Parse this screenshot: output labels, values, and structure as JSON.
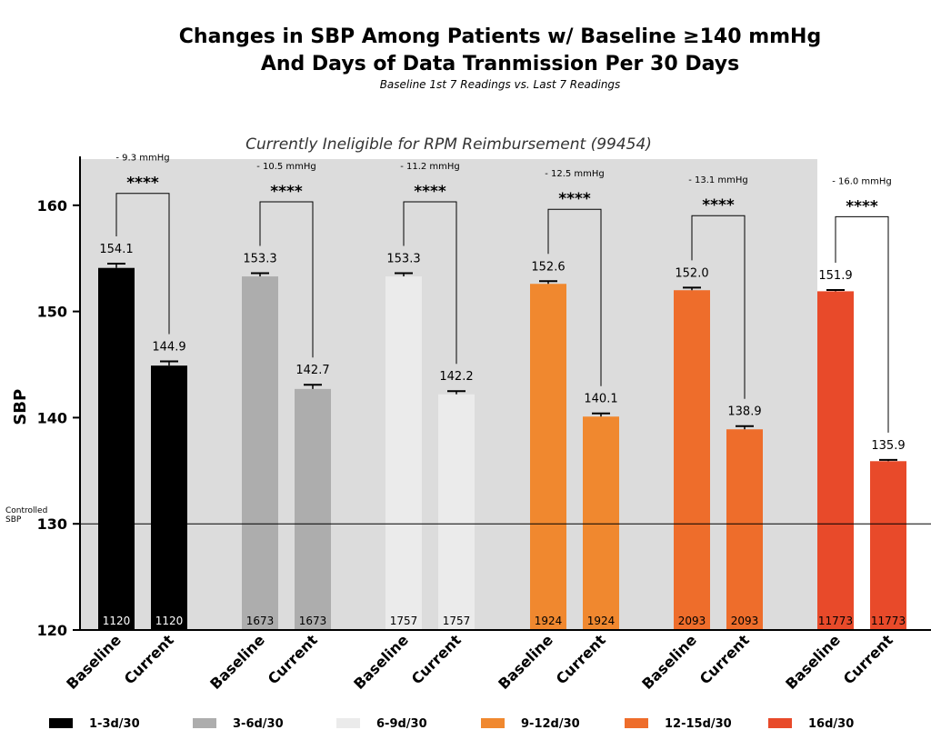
{
  "title_line1": "Changes in SBP Among Patients w/ Baseline ≥140 mmHg",
  "title_line2": "And Days of Data Tranmission Per 30 Days",
  "subtitle": "Baseline 1st 7 Readings vs. Last 7 Readings",
  "shaded_label": "Currently Ineligible for RPM Reimbursement (99454)",
  "reference_label_line1": "Controlled",
  "reference_label_line2": "SBP",
  "significance": "****",
  "chart_data": {
    "type": "bar",
    "ylabel": "SBP",
    "xlabel": "",
    "ylim": [
      120,
      163
    ],
    "yticks": [
      120,
      130,
      140,
      150,
      160
    ],
    "reference_line": 130,
    "shaded_groups": [
      0,
      1,
      2,
      3,
      4
    ],
    "category_labels": [
      "Baseline",
      "Current"
    ],
    "groups": [
      {
        "legend": "1-3d/30",
        "color": "#000000",
        "diff": "- 9.3 mmHg",
        "baseline": 154.1,
        "baseline_err": 0.4,
        "current": 144.9,
        "current_err": 0.4,
        "n_baseline": "1120",
        "n_current": "1120"
      },
      {
        "legend": "3-6d/30",
        "color": "#ADADAD",
        "diff": "- 10.5 mmHg",
        "baseline": 153.3,
        "baseline_err": 0.3,
        "current": 142.7,
        "current_err": 0.4,
        "n_baseline": "1673",
        "n_current": "1673"
      },
      {
        "legend": "6-9d/30",
        "color": "#EBEBEB",
        "diff": "- 11.2 mmHg",
        "baseline": 153.3,
        "baseline_err": 0.3,
        "current": 142.2,
        "current_err": 0.3,
        "n_baseline": "1757",
        "n_current": "1757"
      },
      {
        "legend": "9-12d/30",
        "color": "#F0882F",
        "diff": "- 12.5 mmHg",
        "baseline": 152.6,
        "baseline_err": 0.25,
        "current": 140.1,
        "current_err": 0.3,
        "n_baseline": "1924",
        "n_current": "1924"
      },
      {
        "legend": "12-15d/30",
        "color": "#EE6D2B",
        "diff": "- 13.1 mmHg",
        "baseline": 152.0,
        "baseline_err": 0.25,
        "current": 138.9,
        "current_err": 0.3,
        "n_baseline": "2093",
        "n_current": "2093"
      },
      {
        "legend": "16d/30",
        "color": "#E84A2A",
        "diff": "- 16.0 mmHg",
        "baseline": 151.9,
        "baseline_err": 0.12,
        "current": 135.9,
        "current_err": 0.12,
        "n_baseline": "11773",
        "n_current": "11773"
      }
    ]
  }
}
